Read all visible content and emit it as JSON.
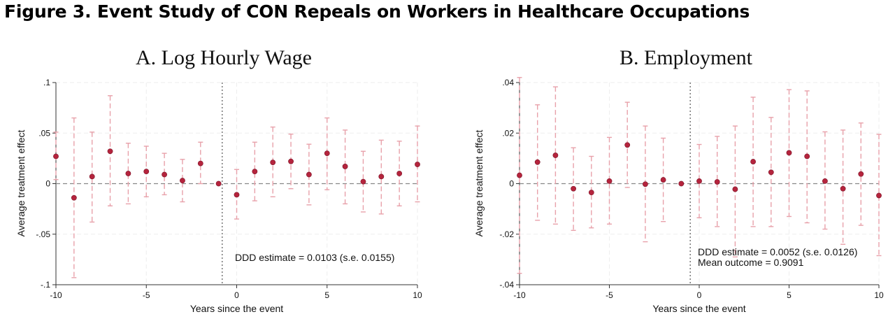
{
  "figure_title": "Figure 3. Event Study of CON Repeals on Workers in Healthcare Occupations",
  "chart_data": [
    {
      "type": "scatter",
      "title": "A. Log Hourly Wage",
      "xlabel": "Years since the event",
      "ylabel": "Average treatment effect",
      "xlim": [
        -10,
        10
      ],
      "ylim": [
        -0.1,
        0.1
      ],
      "xticks": [
        -10,
        -5,
        0,
        5,
        10
      ],
      "xtick_labels": [
        "-10",
        "-5",
        "0",
        "5",
        "10"
      ],
      "yticks": [
        -0.1,
        -0.05,
        0,
        0.05,
        0.1
      ],
      "ytick_labels": [
        "-.1",
        "-.05",
        "0",
        ".05",
        ".1"
      ],
      "event_line_x": -0.8,
      "grid": true,
      "annotations": [
        "DDD estimate = 0.0103 (s.e. 0.0155)"
      ],
      "x": [
        -10,
        -9,
        -8,
        -7,
        -6,
        -5,
        -4,
        -3,
        -2,
        -1,
        0,
        1,
        2,
        3,
        4,
        5,
        6,
        7,
        8,
        9,
        10
      ],
      "y": [
        0.027,
        -0.014,
        0.007,
        0.032,
        0.01,
        0.012,
        0.009,
        0.003,
        0.02,
        0.0,
        -0.011,
        0.012,
        0.021,
        0.022,
        0.009,
        0.03,
        0.017,
        0.002,
        0.007,
        0.01,
        0.019
      ],
      "ci_low": [
        0.004,
        -0.093,
        -0.038,
        -0.022,
        -0.02,
        -0.013,
        -0.011,
        -0.018,
        0.0,
        null,
        -0.035,
        -0.017,
        -0.013,
        -0.005,
        -0.021,
        -0.006,
        -0.02,
        -0.028,
        -0.03,
        -0.022,
        -0.018
      ],
      "ci_high": [
        0.051,
        0.065,
        0.051,
        0.087,
        0.04,
        0.037,
        0.03,
        0.024,
        0.041,
        null,
        0.014,
        0.041,
        0.056,
        0.049,
        0.039,
        0.065,
        0.053,
        0.032,
        0.043,
        0.042,
        0.057
      ],
      "colors": {
        "point": "#b5243d",
        "ci": "#e8a1aa",
        "zero": "#888888",
        "grid": "#eeeeee"
      }
    },
    {
      "type": "scatter",
      "title": "B. Employment",
      "xlabel": "Years since the event",
      "ylabel": "Average treatment effect",
      "xlim": [
        -10,
        10
      ],
      "ylim": [
        -0.04,
        0.04
      ],
      "xticks": [
        -10,
        -5,
        0,
        5,
        10
      ],
      "xtick_labels": [
        "-10",
        "-5",
        "0",
        "5",
        "10"
      ],
      "yticks": [
        -0.04,
        -0.02,
        0,
        0.02,
        0.04
      ],
      "ytick_labels": [
        "-.04",
        "-.02",
        "0",
        ".02",
        ".04"
      ],
      "event_line_x": -0.5,
      "grid": true,
      "annotations": [
        "DDD estimate = 0.0052 (s.e. 0.0126)",
        "Mean outcome = 0.9091"
      ],
      "x": [
        -10,
        -9,
        -8,
        -7,
        -6,
        -5,
        -4,
        -3,
        -2,
        -1,
        0,
        1,
        2,
        3,
        4,
        5,
        6,
        7,
        8,
        9,
        10
      ],
      "y": [
        0.0033,
        0.0085,
        0.0112,
        -0.002,
        -0.0035,
        0.001,
        0.0153,
        -0.0002,
        0.0015,
        0.0,
        0.001,
        0.0007,
        -0.0022,
        0.0087,
        0.0045,
        0.0122,
        0.0108,
        0.001,
        -0.002,
        0.0038,
        -0.0047
      ],
      "ci_low": [
        -0.0355,
        -0.0145,
        -0.016,
        -0.0185,
        -0.0175,
        -0.016,
        -0.0015,
        -0.023,
        -0.015,
        null,
        -0.0135,
        -0.017,
        -0.029,
        -0.017,
        -0.017,
        -0.013,
        -0.0155,
        -0.018,
        -0.024,
        -0.0165,
        -0.0285
      ],
      "ci_high": [
        0.042,
        0.0312,
        0.0383,
        0.0142,
        0.0108,
        0.0183,
        0.0322,
        0.0228,
        0.018,
        null,
        0.0155,
        0.0187,
        0.0228,
        0.0342,
        0.0262,
        0.0372,
        0.0367,
        0.0205,
        0.0212,
        0.024,
        0.0195
      ],
      "colors": {
        "point": "#b5243d",
        "ci": "#e8a1aa",
        "zero": "#888888",
        "grid": "#eeeeee"
      }
    }
  ]
}
